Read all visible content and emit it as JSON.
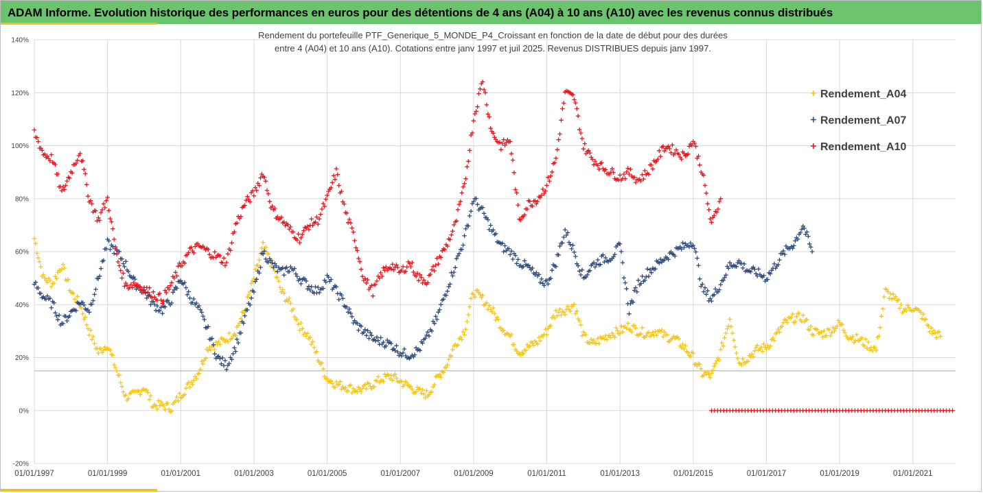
{
  "header": {
    "title": "ADAM Informe. Evolution historique des performances en euros pour des détentions de 4 ans (A04) à 10 ans (A10) avec les revenus connus distribués"
  },
  "colors": {
    "header_bg": "#6cc36e",
    "accent": "#f0c020",
    "A04": "#f5c518",
    "A07": "#2e4a7d",
    "A10": "#e8141c",
    "reference_line": "#a6a6a6"
  },
  "chart_data": {
    "type": "scatter",
    "title": "",
    "subtitle_lines": [
      "Rendement du portefeuille PTF_Generique_5_MONDE_P4_Croissant  en fonction de la date de début pour des durées",
      "entre 4 (A04) et 10 ans (A10). Cotations entre janv 1997 et juil 2025. Revenus DISTRIBUES depuis janv 1997."
    ],
    "xlabel": "",
    "ylabel": "",
    "x_axis": {
      "type": "date",
      "min": "1997-01-01",
      "max": "2022-03-01",
      "tick_labels": [
        "01/01/1997",
        "01/01/1999",
        "01/01/2001",
        "01/01/2003",
        "01/01/2005",
        "01/01/2007",
        "01/01/2009",
        "01/01/2011",
        "01/01/2013",
        "01/01/2015",
        "01/01/2017",
        "01/01/2019",
        "01/01/2021"
      ]
    },
    "y_axis": {
      "min": -0.2,
      "max": 1.4,
      "step": 0.2,
      "tick_labels": [
        "-20%",
        "0%",
        "20%",
        "40%",
        "60%",
        "80%",
        "100%",
        "120%",
        "140%"
      ]
    },
    "grid": true,
    "reference_line_y": 0.15,
    "legend_position": "right",
    "marker": "plus",
    "series": [
      {
        "name": "Rendement_A04",
        "color": "#f5c518",
        "points": [
          [
            "1997-01",
            0.65
          ],
          [
            "1997-04",
            0.5
          ],
          [
            "1997-07",
            0.48
          ],
          [
            "1997-10",
            0.55
          ],
          [
            "1998-01",
            0.45
          ],
          [
            "1998-04",
            0.4
          ],
          [
            "1998-07",
            0.3
          ],
          [
            "1998-10",
            0.22
          ],
          [
            "1999-01",
            0.25
          ],
          [
            "1999-04",
            0.15
          ],
          [
            "1999-07",
            0.05
          ],
          [
            "1999-10",
            0.06
          ],
          [
            "2000-01",
            0.09
          ],
          [
            "2000-04",
            0.02
          ],
          [
            "2000-07",
            0.02
          ],
          [
            "2000-10",
            0.01
          ],
          [
            "2001-01",
            0.06
          ],
          [
            "2001-04",
            0.1
          ],
          [
            "2001-07",
            0.15
          ],
          [
            "2001-10",
            0.24
          ],
          [
            "2002-01",
            0.25
          ],
          [
            "2002-04",
            0.27
          ],
          [
            "2002-07",
            0.3
          ],
          [
            "2002-10",
            0.38
          ],
          [
            "2003-01",
            0.5
          ],
          [
            "2003-04",
            0.62
          ],
          [
            "2003-07",
            0.55
          ],
          [
            "2003-10",
            0.45
          ],
          [
            "2004-01",
            0.4
          ],
          [
            "2004-04",
            0.32
          ],
          [
            "2004-07",
            0.28
          ],
          [
            "2004-10",
            0.2
          ],
          [
            "2005-01",
            0.12
          ],
          [
            "2005-04",
            0.1
          ],
          [
            "2005-07",
            0.09
          ],
          [
            "2005-10",
            0.08
          ],
          [
            "2006-01",
            0.08
          ],
          [
            "2006-04",
            0.1
          ],
          [
            "2006-07",
            0.12
          ],
          [
            "2006-10",
            0.13
          ],
          [
            "2007-01",
            0.11
          ],
          [
            "2007-04",
            0.09
          ],
          [
            "2007-07",
            0.07
          ],
          [
            "2007-10",
            0.06
          ],
          [
            "2008-01",
            0.12
          ],
          [
            "2008-04",
            0.17
          ],
          [
            "2008-07",
            0.25
          ],
          [
            "2008-10",
            0.3
          ],
          [
            "2009-01",
            0.45
          ],
          [
            "2009-04",
            0.42
          ],
          [
            "2009-07",
            0.38
          ],
          [
            "2009-10",
            0.32
          ],
          [
            "2010-01",
            0.28
          ],
          [
            "2010-04",
            0.22
          ],
          [
            "2010-07",
            0.24
          ],
          [
            "2010-10",
            0.26
          ],
          [
            "2011-01",
            0.3
          ],
          [
            "2011-04",
            0.37
          ],
          [
            "2011-07",
            0.38
          ],
          [
            "2011-10",
            0.4
          ],
          [
            "2012-01",
            0.28
          ],
          [
            "2012-04",
            0.25
          ],
          [
            "2012-07",
            0.27
          ],
          [
            "2012-10",
            0.29
          ],
          [
            "2013-01",
            0.3
          ],
          [
            "2013-04",
            0.32
          ],
          [
            "2013-07",
            0.3
          ],
          [
            "2013-10",
            0.29
          ],
          [
            "2014-01",
            0.3
          ],
          [
            "2014-04",
            0.28
          ],
          [
            "2014-07",
            0.27
          ],
          [
            "2014-10",
            0.24
          ],
          [
            "2015-01",
            0.2
          ],
          [
            "2015-04",
            0.14
          ],
          [
            "2015-07",
            0.13
          ],
          [
            "2015-10",
            0.22
          ],
          [
            "2016-01",
            0.35
          ],
          [
            "2016-04",
            0.18
          ],
          [
            "2016-07",
            0.2
          ],
          [
            "2016-10",
            0.23
          ],
          [
            "2017-01",
            0.24
          ],
          [
            "2017-04",
            0.28
          ],
          [
            "2017-07",
            0.33
          ],
          [
            "2017-10",
            0.35
          ],
          [
            "2018-01",
            0.35
          ],
          [
            "2018-04",
            0.3
          ],
          [
            "2018-07",
            0.29
          ],
          [
            "2018-10",
            0.3
          ],
          [
            "2019-01",
            0.33
          ],
          [
            "2019-04",
            0.28
          ],
          [
            "2019-07",
            0.27
          ],
          [
            "2019-10",
            0.25
          ],
          [
            "2020-01",
            0.23
          ],
          [
            "2020-04",
            0.45
          ],
          [
            "2020-07",
            0.42
          ],
          [
            "2020-10",
            0.38
          ],
          [
            "2021-01",
            0.39
          ],
          [
            "2021-04",
            0.36
          ],
          [
            "2021-07",
            0.3
          ],
          [
            "2021-10",
            0.28
          ]
        ]
      },
      {
        "name": "Rendement_A07",
        "color": "#2e4a7d",
        "points": [
          [
            "1997-01",
            0.48
          ],
          [
            "1997-04",
            0.43
          ],
          [
            "1997-07",
            0.4
          ],
          [
            "1997-10",
            0.33
          ],
          [
            "1998-01",
            0.37
          ],
          [
            "1998-04",
            0.41
          ],
          [
            "1998-07",
            0.38
          ],
          [
            "1998-10",
            0.5
          ],
          [
            "1999-01",
            0.63
          ],
          [
            "1999-04",
            0.6
          ],
          [
            "1999-07",
            0.55
          ],
          [
            "1999-10",
            0.48
          ],
          [
            "2000-01",
            0.45
          ],
          [
            "2000-04",
            0.4
          ],
          [
            "2000-07",
            0.38
          ],
          [
            "2000-10",
            0.42
          ],
          [
            "2001-01",
            0.5
          ],
          [
            "2001-04",
            0.43
          ],
          [
            "2001-07",
            0.38
          ],
          [
            "2001-10",
            0.3
          ],
          [
            "2002-01",
            0.2
          ],
          [
            "2002-04",
            0.17
          ],
          [
            "2002-07",
            0.24
          ],
          [
            "2002-10",
            0.35
          ],
          [
            "2003-01",
            0.45
          ],
          [
            "2003-04",
            0.6
          ],
          [
            "2003-07",
            0.55
          ],
          [
            "2003-10",
            0.52
          ],
          [
            "2004-01",
            0.54
          ],
          [
            "2004-04",
            0.5
          ],
          [
            "2004-07",
            0.47
          ],
          [
            "2004-10",
            0.45
          ],
          [
            "2005-01",
            0.5
          ],
          [
            "2005-04",
            0.45
          ],
          [
            "2005-07",
            0.4
          ],
          [
            "2005-10",
            0.33
          ],
          [
            "2006-01",
            0.3
          ],
          [
            "2006-04",
            0.27
          ],
          [
            "2006-07",
            0.26
          ],
          [
            "2006-10",
            0.25
          ],
          [
            "2007-01",
            0.22
          ],
          [
            "2007-04",
            0.21
          ],
          [
            "2007-07",
            0.23
          ],
          [
            "2007-10",
            0.28
          ],
          [
            "2008-01",
            0.35
          ],
          [
            "2008-04",
            0.45
          ],
          [
            "2008-07",
            0.55
          ],
          [
            "2008-10",
            0.65
          ],
          [
            "2009-01",
            0.8
          ],
          [
            "2009-04",
            0.75
          ],
          [
            "2009-07",
            0.68
          ],
          [
            "2009-10",
            0.62
          ],
          [
            "2010-01",
            0.6
          ],
          [
            "2010-04",
            0.56
          ],
          [
            "2010-07",
            0.54
          ],
          [
            "2010-10",
            0.5
          ],
          [
            "2011-01",
            0.48
          ],
          [
            "2011-04",
            0.56
          ],
          [
            "2011-07",
            0.68
          ],
          [
            "2011-10",
            0.6
          ],
          [
            "2012-01",
            0.5
          ],
          [
            "2012-04",
            0.55
          ],
          [
            "2012-07",
            0.57
          ],
          [
            "2012-10",
            0.58
          ],
          [
            "2013-01",
            0.62
          ],
          [
            "2013-04",
            0.38
          ],
          [
            "2013-07",
            0.48
          ],
          [
            "2013-10",
            0.52
          ],
          [
            "2014-01",
            0.55
          ],
          [
            "2014-04",
            0.58
          ],
          [
            "2014-07",
            0.6
          ],
          [
            "2014-10",
            0.62
          ],
          [
            "2015-01",
            0.64
          ],
          [
            "2015-04",
            0.46
          ],
          [
            "2015-07",
            0.42
          ],
          [
            "2015-10",
            0.48
          ],
          [
            "2016-01",
            0.55
          ],
          [
            "2016-04",
            0.56
          ],
          [
            "2016-07",
            0.53
          ],
          [
            "2016-10",
            0.52
          ],
          [
            "2017-01",
            0.5
          ],
          [
            "2017-04",
            0.55
          ],
          [
            "2017-07",
            0.6
          ],
          [
            "2017-10",
            0.63
          ],
          [
            "2018-01",
            0.7
          ],
          [
            "2018-04",
            0.6
          ]
        ]
      },
      {
        "name": "Rendement_A10",
        "color": "#e8141c",
        "points": [
          [
            "1997-01",
            1.05
          ],
          [
            "1997-04",
            0.97
          ],
          [
            "1997-07",
            0.95
          ],
          [
            "1997-10",
            0.82
          ],
          [
            "1998-01",
            0.9
          ],
          [
            "1998-04",
            0.98
          ],
          [
            "1998-07",
            0.8
          ],
          [
            "1998-10",
            0.72
          ],
          [
            "1999-01",
            0.8
          ],
          [
            "1999-04",
            0.58
          ],
          [
            "1999-07",
            0.47
          ],
          [
            "1999-10",
            0.48
          ],
          [
            "2000-01",
            0.46
          ],
          [
            "2000-04",
            0.44
          ],
          [
            "2000-07",
            0.42
          ],
          [
            "2000-10",
            0.48
          ],
          [
            "2001-01",
            0.55
          ],
          [
            "2001-04",
            0.6
          ],
          [
            "2001-07",
            0.62
          ],
          [
            "2001-10",
            0.6
          ],
          [
            "2002-01",
            0.58
          ],
          [
            "2002-04",
            0.56
          ],
          [
            "2002-07",
            0.7
          ],
          [
            "2002-10",
            0.78
          ],
          [
            "2003-01",
            0.82
          ],
          [
            "2003-04",
            0.9
          ],
          [
            "2003-07",
            0.76
          ],
          [
            "2003-10",
            0.72
          ],
          [
            "2004-01",
            0.68
          ],
          [
            "2004-04",
            0.65
          ],
          [
            "2004-07",
            0.7
          ],
          [
            "2004-10",
            0.72
          ],
          [
            "2005-01",
            0.8
          ],
          [
            "2005-04",
            0.9
          ],
          [
            "2005-07",
            0.75
          ],
          [
            "2005-10",
            0.65
          ],
          [
            "2006-01",
            0.5
          ],
          [
            "2006-04",
            0.45
          ],
          [
            "2006-07",
            0.52
          ],
          [
            "2006-10",
            0.55
          ],
          [
            "2007-01",
            0.52
          ],
          [
            "2007-04",
            0.56
          ],
          [
            "2007-07",
            0.5
          ],
          [
            "2007-10",
            0.49
          ],
          [
            "2008-01",
            0.56
          ],
          [
            "2008-04",
            0.62
          ],
          [
            "2008-07",
            0.7
          ],
          [
            "2008-10",
            0.85
          ],
          [
            "2009-01",
            1.1
          ],
          [
            "2009-04",
            1.25
          ],
          [
            "2009-07",
            1.05
          ],
          [
            "2009-10",
            1.0
          ],
          [
            "2010-01",
            1.02
          ],
          [
            "2010-04",
            0.72
          ],
          [
            "2010-07",
            0.78
          ],
          [
            "2010-10",
            0.8
          ],
          [
            "2011-01",
            0.85
          ],
          [
            "2011-04",
            0.95
          ],
          [
            "2011-07",
            1.2
          ],
          [
            "2011-10",
            1.18
          ],
          [
            "2012-01",
            1.0
          ],
          [
            "2012-04",
            0.95
          ],
          [
            "2012-07",
            0.92
          ],
          [
            "2012-10",
            0.9
          ],
          [
            "2013-01",
            0.88
          ],
          [
            "2013-04",
            0.9
          ],
          [
            "2013-07",
            0.87
          ],
          [
            "2013-10",
            0.9
          ],
          [
            "2014-01",
            0.95
          ],
          [
            "2014-04",
            1.0
          ],
          [
            "2014-07",
            0.98
          ],
          [
            "2014-10",
            0.96
          ],
          [
            "2015-01",
            1.02
          ],
          [
            "2015-04",
            0.9
          ],
          [
            "2015-07",
            0.7
          ],
          [
            "2015-10",
            0.8
          ]
        ],
        "zero_run": {
          "from": "2015-07",
          "to": "2022-02",
          "value": 0.0
        }
      }
    ]
  }
}
